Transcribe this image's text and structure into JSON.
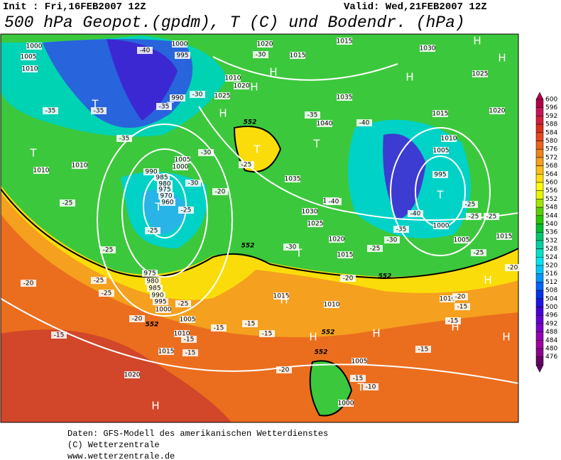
{
  "header": {
    "init": "Init : Fri,16FEB2007 12Z",
    "valid": "Valid: Wed,21FEB2007 12Z",
    "title": "500 hPa Geopot.(gpdm), T (C) und Bodendr. (hPa)"
  },
  "colorbar": {
    "levels": [
      600,
      596,
      592,
      588,
      584,
      580,
      576,
      572,
      568,
      564,
      560,
      556,
      552,
      548,
      544,
      540,
      536,
      532,
      528,
      524,
      520,
      516,
      512,
      508,
      504,
      500,
      496,
      492,
      488,
      484,
      480,
      476
    ],
    "colors": [
      "#b4004b",
      "#c8145a",
      "#d21e3c",
      "#dc2d1e",
      "#e6461e",
      "#eb641e",
      "#f0821e",
      "#f5a01e",
      "#fabe14",
      "#ffdc0a",
      "#ffff00",
      "#e6f500",
      "#a0e600",
      "#5ad200",
      "#28c800",
      "#00be32",
      "#00c86e",
      "#00d2a0",
      "#00e1c8",
      "#00e6f0",
      "#00c8ff",
      "#0096ff",
      "#0064ff",
      "#0032f0",
      "#1e14e6",
      "#4600dc",
      "#6400d2",
      "#7d00c8",
      "#9600b4",
      "#a000a0",
      "#8c008c",
      "#640064"
    ]
  },
  "map": {
    "isobar_labels": [
      1000,
      1005,
      1010,
      1000,
      995,
      1020,
      1015,
      1015,
      1030,
      1025,
      1010,
      1020,
      1025,
      990,
      1035,
      1040,
      1015,
      1020,
      1010,
      1005,
      995,
      1000,
      1005,
      1015,
      1010,
      1010,
      1005,
      1000,
      990,
      985,
      980,
      975,
      970,
      960,
      1035,
      1035,
      1030,
      1025,
      1020,
      1015,
      975,
      980,
      985,
      990,
      995,
      1000,
      1005,
      1010,
      1015,
      1010,
      1010,
      1015,
      1020,
      1005,
      1000
    ],
    "temperature_labels": [
      -40,
      -30,
      -35,
      -35,
      -35,
      -30,
      -35,
      -30,
      -25,
      -20,
      -30,
      -25,
      -25,
      -25,
      -25,
      -35,
      -40,
      -40,
      -40,
      -35,
      -30,
      -25,
      -25,
      -25,
      -25,
      -25,
      -30,
      -20,
      -25,
      -25,
      -20,
      -25,
      -15,
      -15,
      -15,
      -15,
      -15,
      -20,
      -20,
      -15,
      -15,
      -15,
      -15,
      -20,
      -15,
      -10,
      -20
    ],
    "contour_552_labels": [
      552,
      552,
      552,
      552,
      552,
      552
    ],
    "highs": [
      "H",
      "H",
      "H",
      "H",
      "H",
      "H",
      "H",
      "H",
      "H",
      "H",
      "H",
      "H",
      "H"
    ],
    "lows": [
      "T",
      "T",
      "T",
      "T",
      "T",
      "T",
      "T",
      "T",
      "T"
    ]
  },
  "footer": {
    "source": "Daten: GFS-Modell des amerikanischen Wetterdienstes",
    "copyright": "(C) Wetterzentrale",
    "url": "www.wetterzentrale.de"
  }
}
